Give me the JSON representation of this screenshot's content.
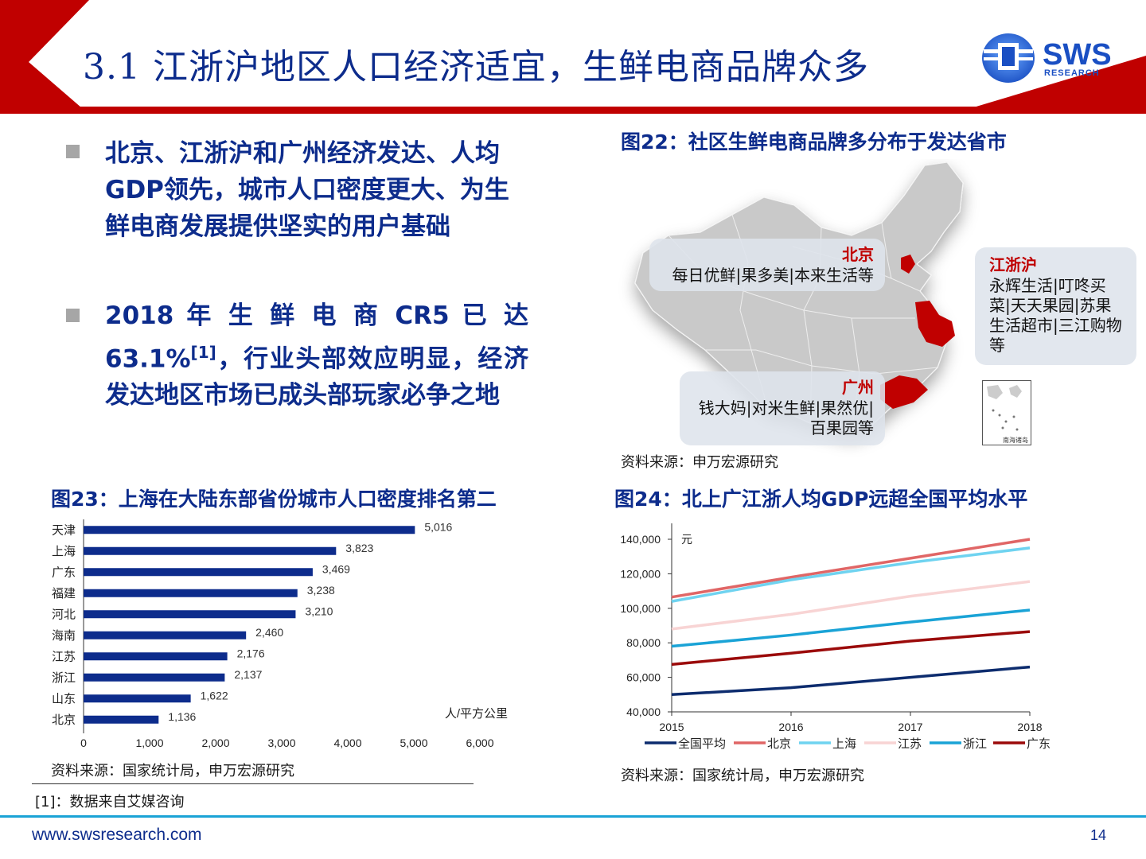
{
  "header": {
    "title": "3.1 江浙沪地区人口经济适宜，生鲜电商品牌众多",
    "logo_text": "SWS",
    "logo_sub": "RESEARCH",
    "accent_red": "#c00000",
    "accent_blue": "#0d2c8c"
  },
  "bullets": [
    "北京、江浙沪和广州经济发达、人均GDP领先，城市人口密度更大、为生鲜电商发展提供坚实的用户基础",
    {
      "pre": "2018 年 生 鲜 电 商 CR5 已 达 63.1%",
      "sup": "[1]",
      "post": "，行业头部效应明显，经济发达地区市场已成头部玩家必争之地"
    }
  ],
  "fig22": {
    "title": "图22：社区生鲜电商品牌多分布于发达省市",
    "callouts": [
      {
        "region": "北京",
        "text": "每日优鲜|果多美|本来生活等"
      },
      {
        "region": "江浙沪",
        "text": "永辉生活|叮咚买菜|天天果园|苏果生活超市|三江购物等"
      },
      {
        "region": "广州",
        "text": "钱大妈|对米生鲜|果然优|百果园等"
      }
    ],
    "inset_label": "南海诸岛",
    "source": "资料来源：申万宏源研究"
  },
  "fig23": {
    "title": "图23：上海在大陆东部省份城市人口密度排名第二",
    "source": "资料来源：国家统计局，申万宏源研究"
  },
  "fig24": {
    "title": "图24：北上广江浙人均GDP远超全国平均水平",
    "source": "资料来源：国家统计局，申万宏源研究"
  },
  "chart_data": [
    {
      "type": "bar",
      "orientation": "horizontal",
      "categories": [
        "天津",
        "上海",
        "广东",
        "福建",
        "河北",
        "海南",
        "江苏",
        "浙江",
        "山东",
        "北京"
      ],
      "values": [
        5016,
        3823,
        3469,
        3238,
        3210,
        2460,
        2176,
        2137,
        1622,
        1136
      ],
      "value_labels": [
        "5,016",
        "3,823",
        "3,469",
        "3,238",
        "3,210",
        "2,460",
        "2,176",
        "2,137",
        "1,622",
        "1,136"
      ],
      "unit_label": "人/平方公里",
      "xlim": [
        0,
        6000
      ],
      "xticks": [
        "0",
        "1,000",
        "2,000",
        "3,000",
        "4,000",
        "5,000",
        "6,000"
      ],
      "bar_color": "#0d2c8c",
      "grid": false
    },
    {
      "type": "line",
      "x": [
        "2015",
        "2016",
        "2017",
        "2018"
      ],
      "unit_label": "元",
      "ylim": [
        40000,
        140000
      ],
      "yticks": [
        "40,000",
        "60,000",
        "80,000",
        "100,000",
        "120,000",
        "140,000"
      ],
      "legend_position": "bottom",
      "grid": false,
      "series": [
        {
          "name": "全国平均",
          "color": "#0d2c6e",
          "values": [
            50000,
            54000,
            60000,
            66000
          ]
        },
        {
          "name": "北京",
          "color": "#e06666",
          "values": [
            106500,
            118000,
            129000,
            140000
          ]
        },
        {
          "name": "上海",
          "color": "#6fd3f0",
          "values": [
            104000,
            116500,
            126500,
            135000
          ]
        },
        {
          "name": "江苏",
          "color": "#f8d4d4",
          "values": [
            88000,
            96500,
            107000,
            115500
          ]
        },
        {
          "name": "浙江",
          "color": "#1aa3d6",
          "values": [
            78000,
            84500,
            92000,
            99000
          ]
        },
        {
          "name": "广东",
          "color": "#9b0a0a",
          "values": [
            67500,
            74000,
            81000,
            86500
          ]
        }
      ]
    }
  ],
  "footnote": "[1]：数据来自艾媒咨询",
  "footer": {
    "url": "www.swsresearch.com",
    "page_number": "14"
  }
}
